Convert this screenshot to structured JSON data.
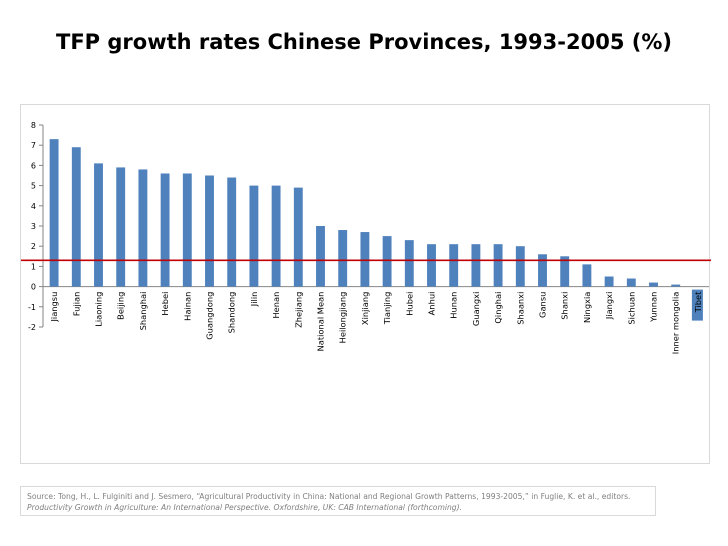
{
  "slide": {
    "title": "TFP growth rates Chinese Provinces, 1993-2005 (%)",
    "source_text": "Source: Tong, H., L. Fulginiti and J. Sesmero, “Agricultural Productivity in China: National and Regional Growth Patterns, 1993-2005,” in Fuglie, K. et al., editors.",
    "source_italic": "Productivity Growth in Agriculture: An International Perspective. Oxfordshire, UK: CAB International (forthcoming)."
  },
  "chart_data": {
    "type": "bar",
    "title": "TFP growth rates Chinese Provinces, 1993-2005 (%)",
    "xlabel": "",
    "ylabel": "",
    "ylim": [
      -2,
      8
    ],
    "yticks": [
      -2,
      -1,
      0,
      1,
      2,
      3,
      4,
      5,
      6,
      7,
      8
    ],
    "categories": [
      "Jiangsu",
      "Fujian",
      "Liaoning",
      "Beijing",
      "Shanghai",
      "Hebei",
      "Hainan",
      "Guangdong",
      "Shandong",
      "Jilin",
      "Henan",
      "Zhejiang",
      "National Mean",
      "Heilongjiang",
      "Xinjiang",
      "Tianjing",
      "Hubei",
      "Anhui",
      "Hunan",
      "Guangxi",
      "Qinghai",
      "Shaanxi",
      "Gansu",
      "Shanxi",
      "Ningxia",
      "Jiangxi",
      "Sichuan",
      "Yunnan",
      "Inner mongolia",
      "Tibet"
    ],
    "values": [
      7.3,
      6.9,
      6.1,
      5.9,
      5.8,
      5.6,
      5.6,
      5.5,
      5.4,
      5.0,
      5.0,
      4.9,
      3.0,
      2.8,
      2.7,
      2.5,
      2.3,
      2.1,
      2.1,
      2.1,
      2.1,
      2.0,
      1.6,
      1.5,
      1.1,
      0.5,
      0.4,
      0.2,
      0.1,
      0.0
    ],
    "highlight_category": "Tibet",
    "reference_line": {
      "value": 1.3,
      "color": "#c00000"
    },
    "bar_color": "#4f81bd",
    "grid": false,
    "legend": "none"
  }
}
